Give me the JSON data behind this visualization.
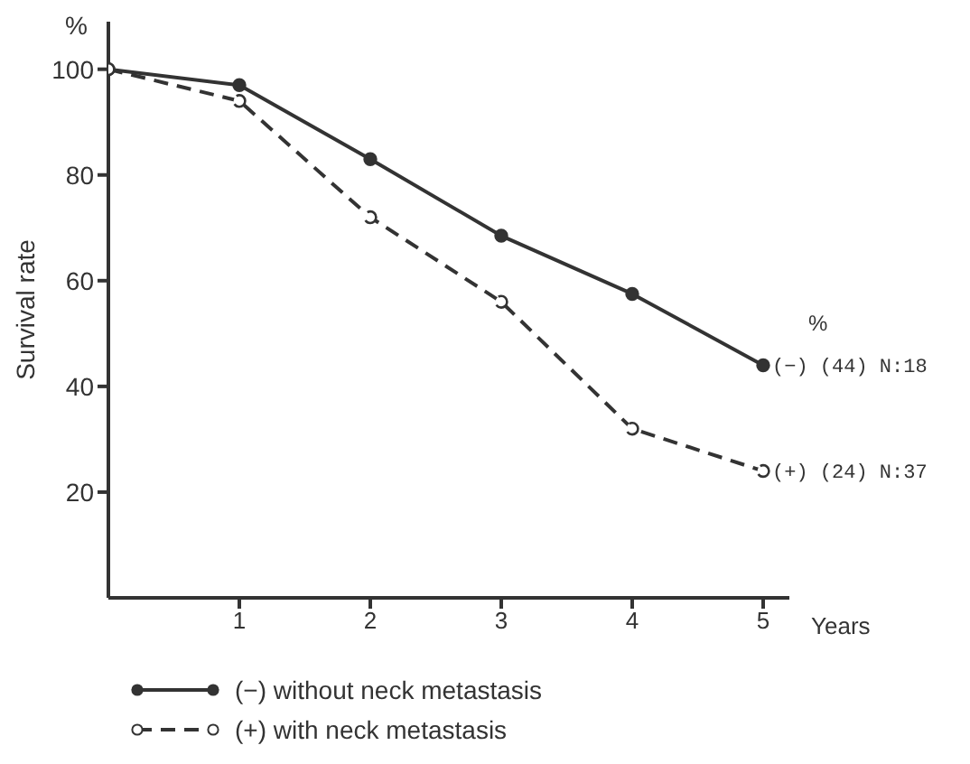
{
  "chart_data": {
    "type": "line",
    "xlabel": "Years",
    "ylabel": "Survival rate",
    "x": [
      0,
      1,
      2,
      3,
      4,
      5
    ],
    "series": [
      {
        "name": "(−) without neck metastasis",
        "color": "#333333",
        "values": [
          100,
          97,
          83,
          68.5,
          57.5,
          44
        ],
        "line_style": "solid",
        "marker": "circle"
      },
      {
        "name": "(+) with neck metastasis",
        "color": "#333333",
        "values": [
          100,
          94,
          72,
          56,
          32,
          24
        ],
        "line_style": "dashed",
        "marker": "circle"
      }
    ],
    "xlim": [
      0,
      5.2
    ],
    "xticks": [
      1,
      2,
      3,
      4,
      5
    ],
    "ylim": [
      0,
      109
    ],
    "yticks": [
      20,
      40,
      60,
      80,
      100
    ],
    "annotations": [
      "%",
      "%",
      {
        "text": "(−) (44) N:18",
        "x": 5,
        "y": 44
      },
      {
        "text": "(+) (24) N:37",
        "x": 5,
        "y": 24
      }
    ],
    "grid": false,
    "legend": "bottom"
  }
}
